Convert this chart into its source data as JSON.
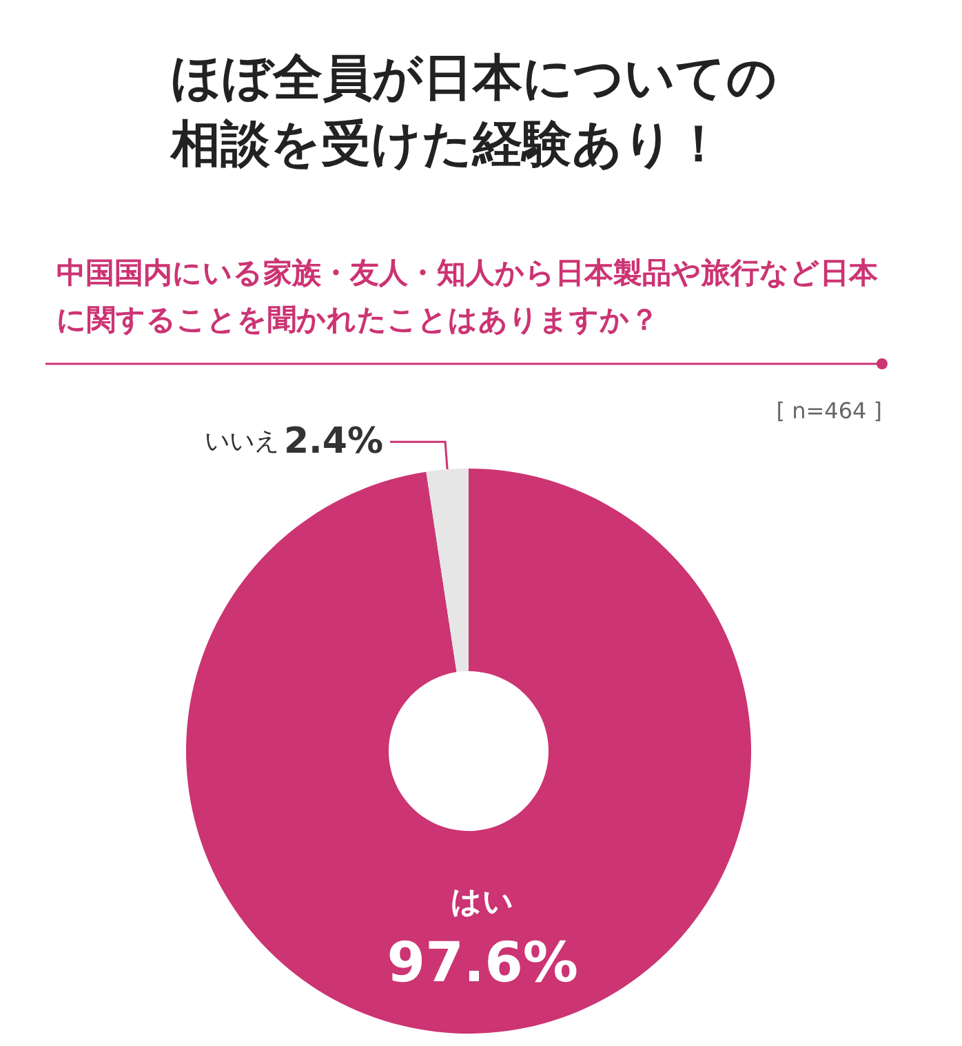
{
  "chart_data": {
    "type": "donut",
    "title": "ほぼ全員が日本についての相談を受けた経験あり！",
    "subtitle": "中国国内にいる家族・友人・知人から日本製品や旅行など日本に関することを聞かれたことはありますか？",
    "annotations": [
      "[ n=464 ]"
    ],
    "categories": [
      "はい",
      "いいえ"
    ],
    "values": [
      97.6,
      2.4
    ],
    "colors": [
      "#cc3473",
      "#e6e6e6"
    ],
    "value_labels": [
      "97.6%",
      "2.4%"
    ],
    "legend": false
  }
}
